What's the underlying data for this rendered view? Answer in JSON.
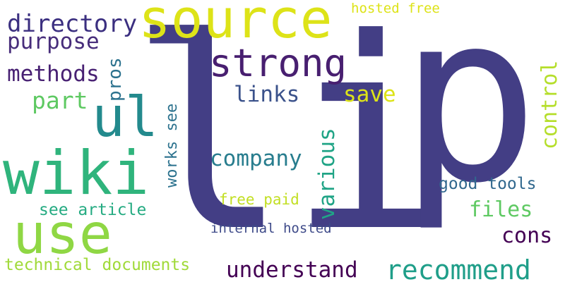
{
  "words": [
    {
      "text": "li",
      "color": "#433e85"
    },
    {
      "text": "p",
      "color": "#433e85"
    },
    {
      "text": "source",
      "color": "#dde318"
    },
    {
      "text": "strong",
      "color": "#481f70"
    },
    {
      "text": "ul",
      "color": "#238a8d"
    },
    {
      "text": "wiki",
      "color": "#2fb47c"
    },
    {
      "text": "use",
      "color": "#8fd744"
    },
    {
      "text": "directory",
      "color": "#3b2f80"
    },
    {
      "text": "purpose",
      "color": "#472d7b"
    },
    {
      "text": "methods",
      "color": "#482173"
    },
    {
      "text": "part",
      "color": "#5ec962"
    },
    {
      "text": "pros",
      "color": "#2c728e"
    },
    {
      "text": "links",
      "color": "#3b528b"
    },
    {
      "text": "save",
      "color": "#dde318"
    },
    {
      "text": "company",
      "color": "#287d8e"
    },
    {
      "text": "various",
      "color": "#20a486"
    },
    {
      "text": "works see",
      "color": "#2c728e"
    },
    {
      "text": "control",
      "color": "#b5de2b"
    },
    {
      "text": "hosted free",
      "color": "#dde318"
    },
    {
      "text": "good tools",
      "color": "#31688e"
    },
    {
      "text": "files",
      "color": "#5ec962"
    },
    {
      "text": "cons",
      "color": "#440154"
    },
    {
      "text": "free paid",
      "color": "#c2df23"
    },
    {
      "text": "see article",
      "color": "#25ab82"
    },
    {
      "text": "internal hosted",
      "color": "#3e4a89"
    },
    {
      "text": "technical documents",
      "color": "#a0da39"
    },
    {
      "text": "understand",
      "color": "#440154"
    },
    {
      "text": "recommend",
      "color": "#1f9e89"
    }
  ]
}
